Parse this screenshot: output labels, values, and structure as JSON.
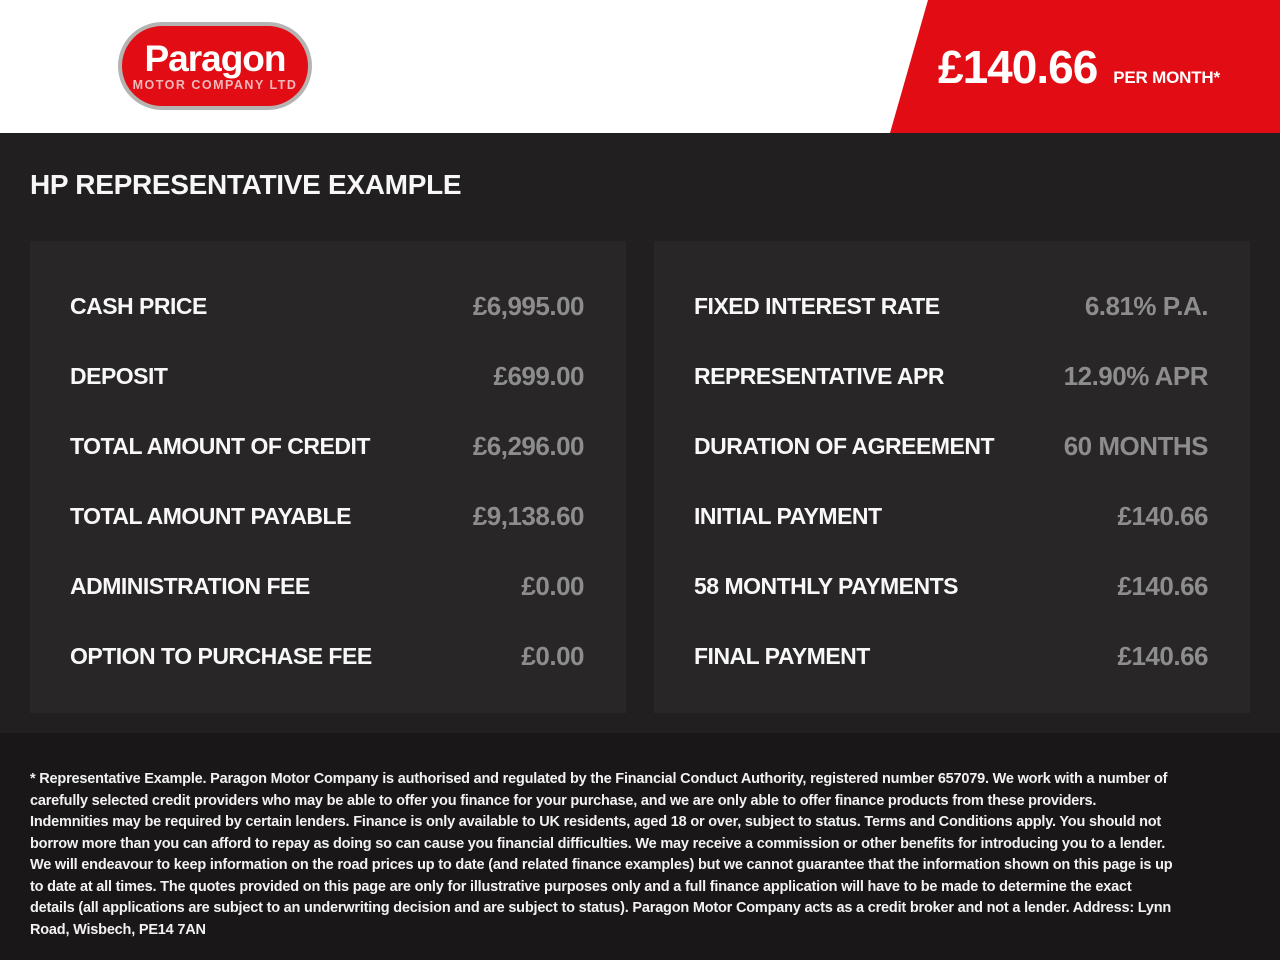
{
  "header": {
    "logo": {
      "name": "Paragon",
      "subtitle": "MOTOR COMPANY LTD"
    },
    "price_banner": {
      "amount": "£140.66",
      "period": "PER MONTH*"
    }
  },
  "title": "HP REPRESENTATIVE EXAMPLE",
  "panels": {
    "left": {
      "rows": [
        {
          "label": "CASH PRICE",
          "value": "£6,995.00"
        },
        {
          "label": "DEPOSIT",
          "value": "£699.00"
        },
        {
          "label": "TOTAL AMOUNT OF CREDIT",
          "value": "£6,296.00"
        },
        {
          "label": "TOTAL AMOUNT PAYABLE",
          "value": "£9,138.60"
        },
        {
          "label": "ADMINISTRATION FEE",
          "value": "£0.00"
        },
        {
          "label": "OPTION TO PURCHASE FEE",
          "value": "£0.00"
        }
      ]
    },
    "right": {
      "rows": [
        {
          "label": "FIXED INTEREST RATE",
          "value": "6.81% P.A."
        },
        {
          "label": "REPRESENTATIVE APR",
          "value": "12.90% APR"
        },
        {
          "label": "DURATION OF AGREEMENT",
          "value": "60 MONTHS"
        },
        {
          "label": "INITIAL PAYMENT",
          "value": "£140.66"
        },
        {
          "label": "58 MONTHLY PAYMENTS",
          "value": "£140.66"
        },
        {
          "label": "FINAL PAYMENT",
          "value": "£140.66"
        }
      ]
    }
  },
  "disclaimer": "* Representative Example. Paragon Motor Company is authorised and regulated by the Financial Conduct Authority, registered number 657079. We work with a number of carefully selected credit providers who may be able to offer you finance for your purchase, and we are only able to offer finance products from these providers. Indemnities may be required by certain lenders. Finance is only available to UK residents, aged 18 or over, subject to status. Terms and Conditions apply. You should not borrow more than you can afford to repay as doing so can cause you financial difficulties. We may receive a commission or other benefits for introducing you to a lender. We will endeavour to keep information on the road prices up to date (and related finance examples) but we cannot guarantee that the information shown on this page is up to date at all times. The quotes provided on this page are only for illustrative purposes only and a full finance application will have to be made to determine the exact details (all applications are subject to an underwriting decision and are subject to status). Paragon Motor Company acts as a credit broker and not a lender. Address: Lynn Road, Wisbech, PE14 7AN",
  "colors": {
    "brand_red": "#e20d14",
    "page_background": "#211f1f",
    "panel_background": "#282626",
    "footer_background": "#191717",
    "label_text": "#f8f8f8",
    "value_text": "#8e8d8d",
    "logo_border": "#b5b4b3",
    "logo_subtitle_text": "#efb9bb"
  }
}
